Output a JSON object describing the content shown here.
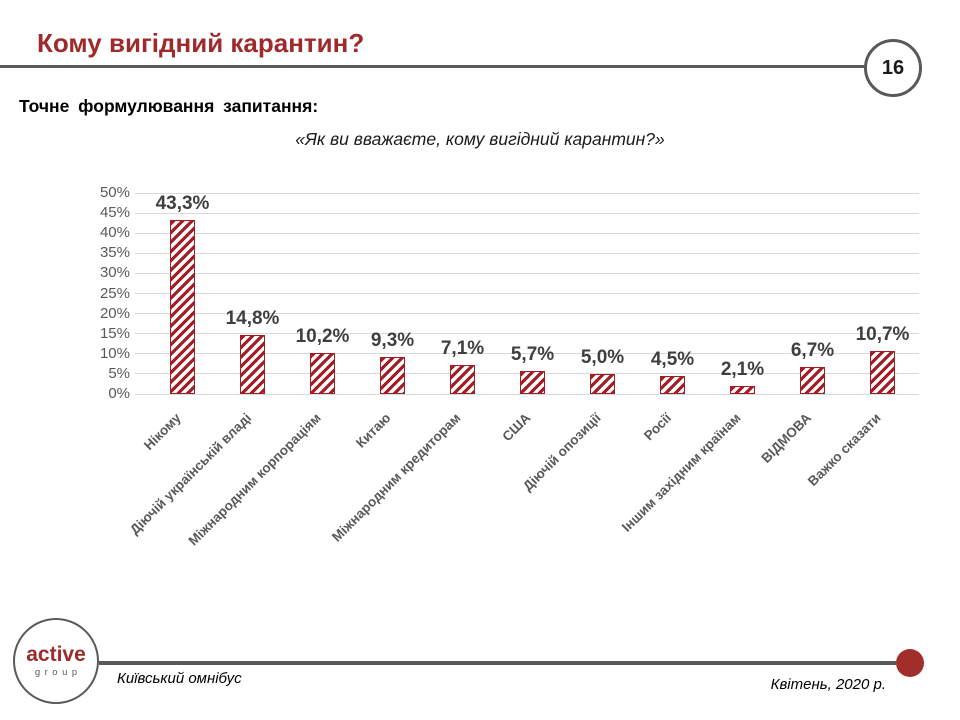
{
  "slide": {
    "title": "Кому вигідний карантин?",
    "page_number": "16",
    "question_label": "Точне формулювання запитання:",
    "question_text": "«Як ви вважаєте, кому вигідний карантин?»"
  },
  "chart_data": {
    "type": "bar",
    "title": "",
    "categories": [
      "Нікому",
      "Діючій українській владі",
      "Міжнародним корпораціям",
      "Китаю",
      "Міжнародним кредиторам",
      "США",
      "Діючій опозиції",
      "Росії",
      "Іншим західним країнам",
      "ВІДМОВА",
      "Важко сказати"
    ],
    "values": [
      43.3,
      14.8,
      10.2,
      9.3,
      7.1,
      5.7,
      5.0,
      4.5,
      2.1,
      6.7,
      10.7
    ],
    "value_labels": [
      "43,3%",
      "14,8%",
      "10,2%",
      "9,3%",
      "7,1%",
      "5,7%",
      "5,0%",
      "4,5%",
      "2,1%",
      "6,7%",
      "10,7%"
    ],
    "xlabel": "",
    "ylabel": "",
    "ylim": [
      0,
      50
    ],
    "y_tick_step": 5,
    "y_tick_labels": [
      "0%",
      "5%",
      "10%",
      "15%",
      "20%",
      "25%",
      "30%",
      "35%",
      "40%",
      "45%",
      "50%"
    ],
    "grid": true,
    "legend": false,
    "bar_style": "diagonal-hatch",
    "bar_color": "#A21E24",
    "value_label_color": "#3F3F3F",
    "axis_label_color": "#595959",
    "gridline_color": "#D9D9D9"
  },
  "footer": {
    "logo_line1": "active",
    "logo_line2": "group",
    "project": "Київський омнібус",
    "date": "Квітень, 2020 р."
  },
  "colors": {
    "accent_red": "#9E2A2B",
    "line_gray": "#595959"
  }
}
